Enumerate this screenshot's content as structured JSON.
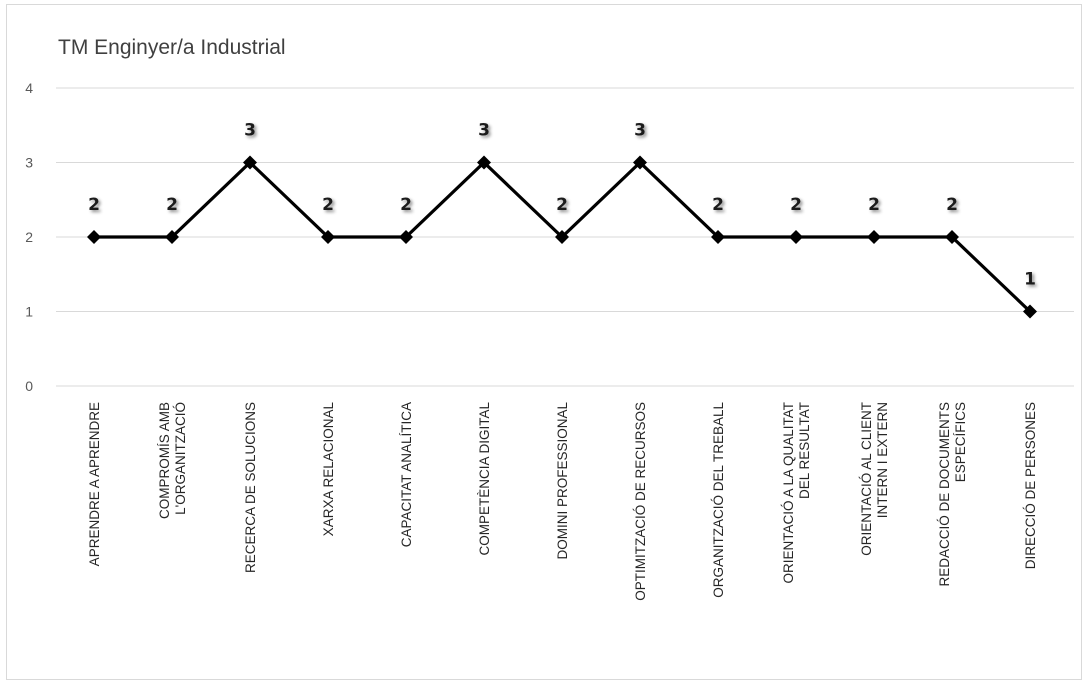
{
  "chart_data": {
    "type": "line",
    "title": "TM Enginyer/a Industrial",
    "categories": [
      [
        "APRENDRE A APRENDRE"
      ],
      [
        "COMPROMÍS AMB",
        "L'ORGANITZACIÓ"
      ],
      [
        "RECERCA DE SOLUCIONS"
      ],
      [
        "XARXA RELACIONAL"
      ],
      [
        "CAPACITAT ANALÍTICA"
      ],
      [
        "COMPETÈNCIA DIGITAL"
      ],
      [
        "DOMINI PROFESSIONAL"
      ],
      [
        "OPTIMITZACIÓ DE RECURSOS"
      ],
      [
        "ORGANITZACIÓ DEL TREBALL"
      ],
      [
        "ORIENTACIÓ A LA QUALITAT",
        "DEL RESULTAT"
      ],
      [
        "ORIENTACIÓ AL CLIENT",
        "INTERN I EXTERN"
      ],
      [
        "REDACCIÓ DE DOCUMENTS",
        "ESPECÍFICS"
      ],
      [
        "DIRECCIÓ DE PERSONES"
      ]
    ],
    "values": [
      2,
      2,
      3,
      2,
      2,
      3,
      2,
      3,
      2,
      2,
      2,
      2,
      1
    ],
    "data_labels": [
      "2",
      "2",
      "3",
      "2",
      "2",
      "3",
      "2",
      "3",
      "2",
      "2",
      "2",
      "2",
      "1"
    ],
    "yticks": [
      "0",
      "1",
      "2",
      "3",
      "4"
    ],
    "ylim": [
      0,
      4
    ],
    "xlabel": "",
    "ylabel": "",
    "grid": true,
    "legend": "none",
    "line_color": "#000000",
    "marker": "diamond",
    "gridline_color": "#d9d9d9"
  }
}
